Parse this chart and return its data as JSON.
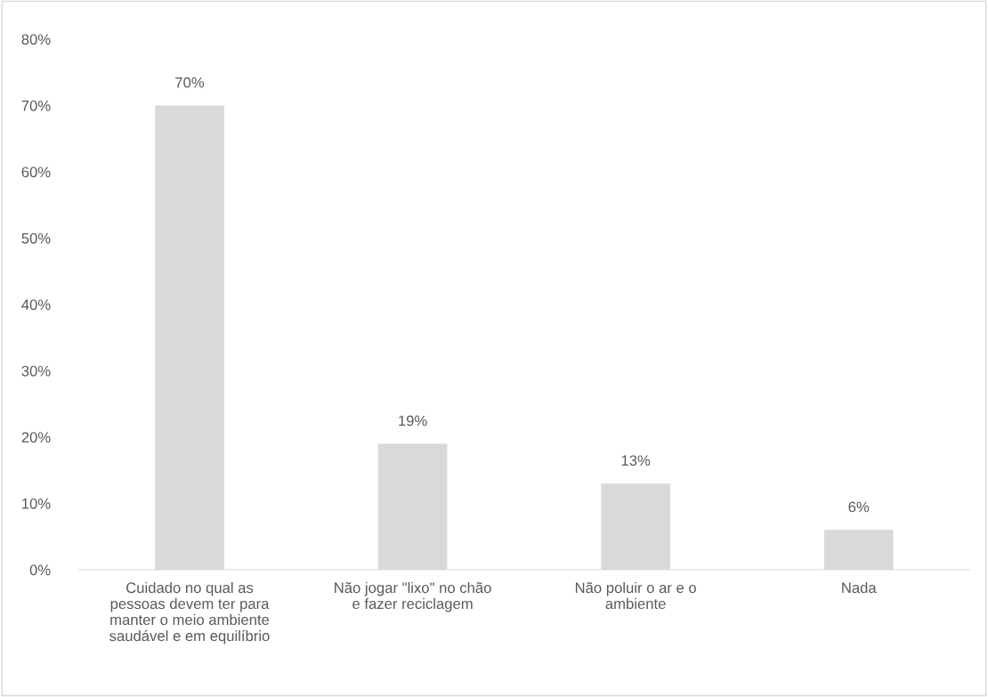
{
  "chart_data": {
    "type": "bar",
    "categories": [
      "Cuidado no qual as pessoas devem ter para manter o meio ambiente saudável e em equilíbrio",
      "Não jogar \"lixo\" no chão e fazer reciclagem",
      "Não poluir o ar e o ambiente",
      "Nada"
    ],
    "values": [
      70,
      19,
      13,
      6
    ],
    "value_labels": [
      "70%",
      "19%",
      "13%",
      "6%"
    ],
    "color": "#d9d9d9",
    "ylim": [
      0,
      80
    ],
    "yticks": [
      {
        "value": 0,
        "label": "0%"
      },
      {
        "value": 10,
        "label": "10%"
      },
      {
        "value": 20,
        "label": "20%"
      },
      {
        "value": 30,
        "label": "30%"
      },
      {
        "value": 40,
        "label": "40%"
      },
      {
        "value": 50,
        "label": "50%"
      },
      {
        "value": 60,
        "label": "60%"
      },
      {
        "value": 70,
        "label": "70%"
      },
      {
        "value": 80,
        "label": "80%"
      }
    ],
    "grid": false
  }
}
